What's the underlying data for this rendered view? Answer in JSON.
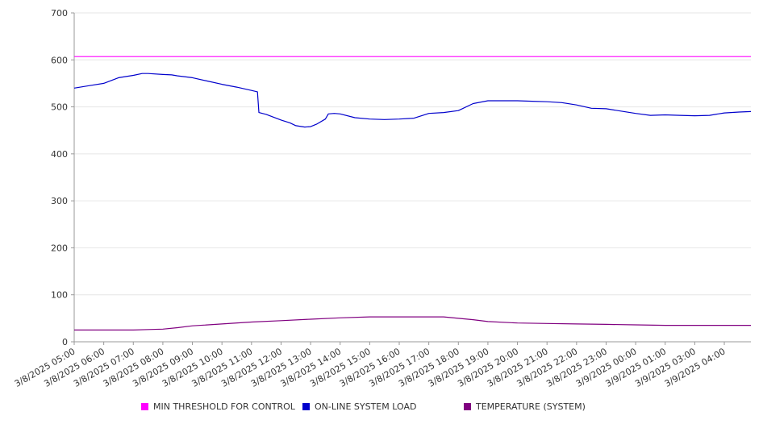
{
  "chart_data": {
    "type": "line",
    "ylim": [
      0,
      700
    ],
    "y_ticks": [
      0,
      100,
      200,
      300,
      400,
      500,
      600,
      700
    ],
    "grid": true,
    "legend_position": "bottom",
    "x_labels": [
      "3/8/2025 05:00",
      "3/8/2025 06:00",
      "3/8/2025 07:00",
      "3/8/2025 08:00",
      "3/8/2025 09:00",
      "3/8/2025 10:00",
      "3/8/2025 11:00",
      "3/8/2025 12:00",
      "3/8/2025 13:00",
      "3/8/2025 14:00",
      "3/8/2025 15:00",
      "3/8/2025 16:00",
      "3/8/2025 17:00",
      "3/8/2025 18:00",
      "3/8/2025 19:00",
      "3/8/2025 20:00",
      "3/8/2025 21:00",
      "3/8/2025 22:00",
      "3/8/2025 23:00",
      "3/9/2025 00:00",
      "3/9/2025 01:00",
      "3/9/2025 03:00",
      "3/9/2025 04:00"
    ],
    "x_hours": [
      0,
      1,
      2,
      3,
      4,
      5,
      6,
      7,
      8,
      9,
      10,
      11,
      12,
      13,
      14,
      15,
      16,
      17,
      18,
      19,
      20,
      21,
      22
    ],
    "x_max_hours": 22.9,
    "series": [
      {
        "name": "MIN THRESHOLD FOR CONTROL",
        "color": "#ff00ff",
        "x_hours": [
          0,
          22.9
        ],
        "values": [
          607,
          607
        ]
      },
      {
        "name": "ON-LINE SYSTEM LOAD",
        "color": "#0000cc",
        "x_hours": [
          0,
          0.5,
          1,
          1.5,
          2,
          2.3,
          2.5,
          3,
          3.3,
          3.5,
          4,
          4.5,
          5,
          5.5,
          6,
          6.2,
          6.25,
          6.5,
          7,
          7.3,
          7.5,
          7.8,
          8,
          8.2,
          8.5,
          8.6,
          8.8,
          9,
          9.5,
          10,
          10.5,
          11,
          11.5,
          11.8,
          12,
          12.5,
          13,
          13.5,
          14,
          14.5,
          15,
          15.5,
          16,
          16.5,
          17,
          17.5,
          18,
          18.5,
          19,
          19.5,
          20,
          20.5,
          21,
          21.5,
          22,
          22.5,
          22.9
        ],
        "values": [
          540,
          545,
          550,
          562,
          567,
          571,
          571,
          569,
          568,
          566,
          562,
          555,
          548,
          542,
          535,
          532,
          488,
          484,
          472,
          466,
          460,
          457,
          458,
          463,
          474,
          485,
          486,
          485,
          477,
          474,
          473,
          474,
          476,
          482,
          486,
          488,
          492,
          507,
          513,
          513,
          513,
          512,
          511,
          509,
          504,
          497,
          496,
          491,
          486,
          482,
          483,
          482,
          481,
          482,
          487,
          489,
          490
        ]
      },
      {
        "name": "TEMPERATURE (SYSTEM)",
        "color": "#800080",
        "x_hours": [
          0,
          1,
          2,
          2.5,
          3,
          3.5,
          4,
          5,
          6,
          7,
          8,
          9,
          10,
          11,
          12,
          12.5,
          13,
          13.5,
          14,
          15,
          16,
          17,
          18,
          19,
          20,
          21,
          22,
          22.9
        ],
        "values": [
          25,
          25,
          25,
          26,
          27,
          30,
          34,
          38,
          42,
          45,
          48,
          51,
          53,
          53,
          53,
          53,
          50,
          47,
          43,
          40,
          39,
          38,
          37,
          36,
          35,
          35,
          35,
          35
        ]
      }
    ]
  }
}
